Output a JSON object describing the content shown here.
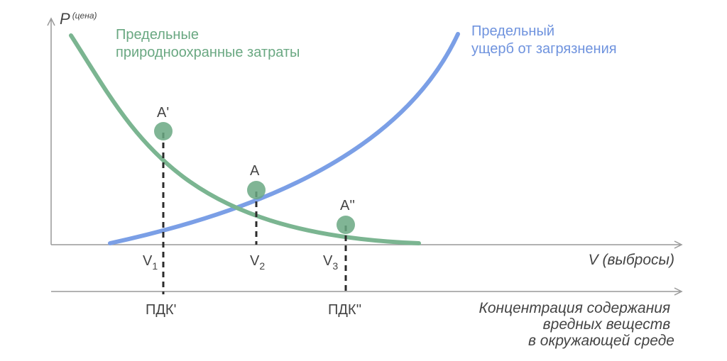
{
  "axes": {
    "y_label": "P",
    "y_sup": "(цена)",
    "x_label": "V (выбросы)",
    "conc_label_lines": [
      "Концентрация содержания",
      "вредных веществ",
      "в окружающей среде"
    ]
  },
  "curves": {
    "abatement": {
      "label_lines": [
        "Предельные",
        "природноохранные затраты"
      ],
      "color": "#7bb591"
    },
    "damage": {
      "label_lines": [
        "Предельный",
        "ущерб от загрязнения"
      ],
      "color": "#7b9fe6"
    }
  },
  "points": {
    "a_prime": "A'",
    "a": "A",
    "a_double": "A''"
  },
  "v_ticks": [
    {
      "base": "V",
      "sub": "1"
    },
    {
      "base": "V",
      "sub": "2"
    },
    {
      "base": "V",
      "sub": "3"
    }
  ],
  "pdk": {
    "first": "ПДК'",
    "second": "ПДК''"
  },
  "colors": {
    "axis": "#999999",
    "dash": "#2b2b2b",
    "marker": "#6aa882"
  }
}
